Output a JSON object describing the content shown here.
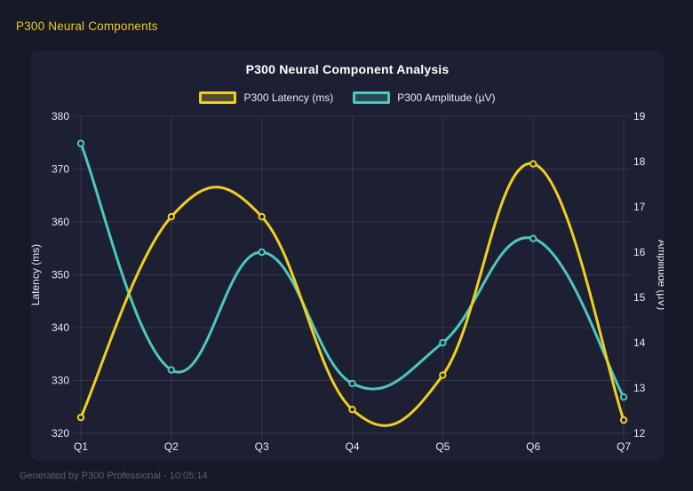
{
  "page": {
    "header_title": "P300 Neural Components",
    "footer": "Generated by P300 Professional - 10:05:14"
  },
  "colors": {
    "page_bg": "#171a26",
    "panel_bg": "#1d2032",
    "grid": "rgba(255,255,255,0.10)",
    "tick_text": "#e8ebf2",
    "title_text": "#ffffff",
    "header_text": "#f0c929",
    "footer_text": "#5a6070",
    "latency_series": "#f2cf1d",
    "amplitude_series": "#4cc8c0"
  },
  "chart_data": {
    "type": "line",
    "title": "P300 Neural Component Analysis",
    "categories": [
      "Q1",
      "Q2",
      "Q3",
      "Q4",
      "Q5",
      "Q6",
      "Q7"
    ],
    "series": [
      {
        "name": "P300 Amplitude (µV)",
        "axis": "right",
        "color": "#4cc8c0",
        "values": [
          18.4,
          13.4,
          16.0,
          13.1,
          14.0,
          16.3,
          12.8
        ]
      },
      {
        "name": "P300 Latency (ms)",
        "axis": "left",
        "color": "#f2cf1d",
        "values": [
          323,
          361,
          361,
          324.5,
          331,
          371,
          322.5
        ]
      }
    ],
    "legend_order": [
      "P300 Latency (ms)",
      "P300 Amplitude (µV)"
    ],
    "left_axis": {
      "label": "Latency (ms)",
      "min": 320,
      "max": 380,
      "ticks": [
        320,
        330,
        340,
        350,
        360,
        370,
        380
      ]
    },
    "right_axis": {
      "label": "Amplitude (µV)",
      "min": 12,
      "max": 19,
      "ticks": [
        12,
        13,
        14,
        15,
        16,
        17,
        18,
        19
      ]
    },
    "legend_position": "top",
    "grid": true,
    "curve": "smooth"
  }
}
